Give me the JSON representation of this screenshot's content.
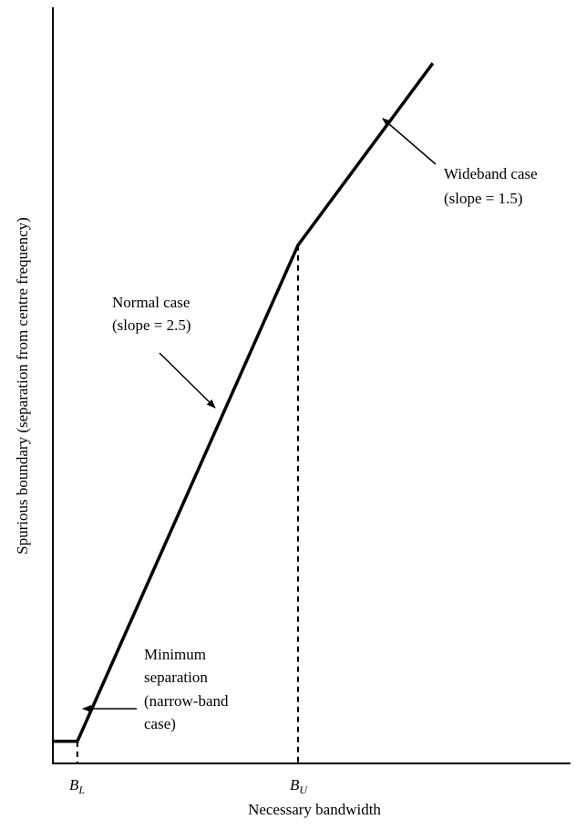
{
  "chart_data": {
    "type": "line",
    "xlabel": "Necessary bandwidth",
    "ylabel": "Spurious boundary (separation from centre frequency)",
    "x_ticks": [
      {
        "name": "B_L",
        "main": "B",
        "sub": "L"
      },
      {
        "name": "B_U",
        "main": "B",
        "sub": "U"
      }
    ],
    "series": [
      {
        "points": [
          {
            "x": 0,
            "y": 1
          },
          {
            "x": 1,
            "y": 1
          },
          {
            "x": 10,
            "y": 23.5
          },
          {
            "x": 15.5,
            "y": 31.75
          }
        ]
      }
    ],
    "xlim": [
      -1,
      20
    ],
    "ylim": [
      0,
      34
    ],
    "annotations": [
      {
        "id": "normal",
        "lines": [
          "Normal case",
          "(slope = 2.5)"
        ]
      },
      {
        "id": "wideband",
        "lines": [
          "Wideband case",
          "(slope = 1.5)"
        ]
      },
      {
        "id": "minimum",
        "lines": [
          "Minimum",
          "separation",
          "(narrow-band",
          "case)"
        ]
      }
    ],
    "grid": false,
    "legend": "none"
  }
}
